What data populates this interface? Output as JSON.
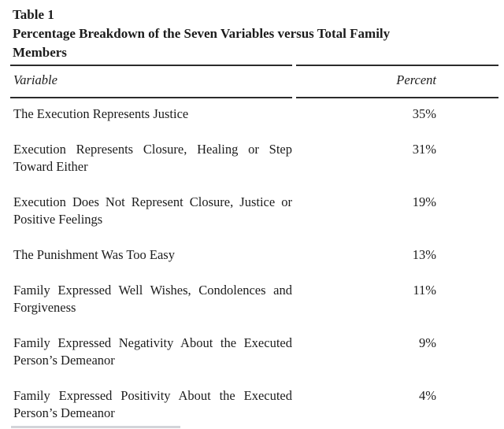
{
  "colors": {
    "text": "#1c1c1c",
    "rule": "#2b2b2b",
    "background": "#ffffff",
    "faint_rule": "#b4b8bf"
  },
  "table": {
    "label": "Table 1",
    "title": "Percentage Breakdown of the Seven Variables versus Total Family Members",
    "headers": {
      "variable": "Variable",
      "percent": "Percent"
    },
    "rows": [
      {
        "variable": "The Execution Represents Justice",
        "percent": "35%"
      },
      {
        "variable": "Execution Represents Closure, Healing or Step Toward Either",
        "percent": "31%"
      },
      {
        "variable": "Execution Does Not Represent Closure, Justice or Positive Feelings",
        "percent": "19%"
      },
      {
        "variable": "The Punishment Was Too Easy",
        "percent": "13%"
      },
      {
        "variable": "Family Expressed Well Wishes, Condolences and Forgiveness",
        "percent": "11%"
      },
      {
        "variable": "Family Expressed Negativity About the Executed Person’s Demeanor",
        "percent": "9%"
      },
      {
        "variable": "Family Expressed Positivity About the Executed Person’s Demeanor",
        "percent": "4%"
      }
    ]
  }
}
